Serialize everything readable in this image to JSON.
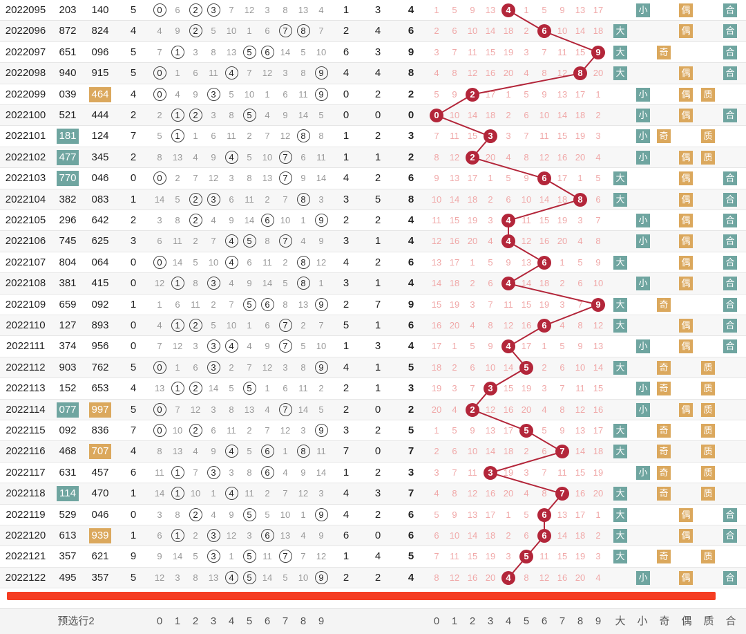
{
  "footer": {
    "label": "预选行2",
    "digits": [
      "0",
      "1",
      "2",
      "3",
      "4",
      "5",
      "6",
      "7",
      "8",
      "9"
    ],
    "digits2": [
      "0",
      "1",
      "2",
      "3",
      "4",
      "5",
      "6",
      "7",
      "8",
      "9"
    ],
    "tags": [
      "大",
      "小",
      "奇",
      "偶",
      "质",
      "合"
    ]
  },
  "rows": [
    {
      "issue": "2022095",
      "a": "203",
      "b": "140",
      "c": "5",
      "d": "1",
      "e": "3",
      "f": "4",
      "ball": 4,
      "tags": [
        "小",
        "偶",
        "合"
      ]
    },
    {
      "issue": "2022096",
      "a": "872",
      "b": "824",
      "c": "4",
      "d": "2",
      "e": "4",
      "f": "6",
      "ball": 6,
      "tags": [
        "大",
        "偶",
        "合"
      ]
    },
    {
      "issue": "2022097",
      "a": "651",
      "b": "096",
      "c": "5",
      "d": "6",
      "e": "3",
      "f": "9",
      "ball": 9,
      "tags": [
        "大",
        "奇",
        "合"
      ]
    },
    {
      "issue": "2022098",
      "a": "940",
      "b": "915",
      "c": "5",
      "d": "4",
      "e": "4",
      "f": "8",
      "ball": 8,
      "tags": [
        "大",
        "偶",
        "合"
      ]
    },
    {
      "issue": "2022099",
      "a": "039",
      "b": "464",
      "c": "4",
      "d": "0",
      "e": "2",
      "f": "2",
      "ball": 2,
      "tags": [
        "小",
        "偶",
        "质"
      ]
    },
    {
      "issue": "2022100",
      "a": "521",
      "b": "444",
      "c": "2",
      "d": "0",
      "e": "0",
      "f": "0",
      "ball": 0,
      "tags": [
        "小",
        "偶",
        "合"
      ]
    },
    {
      "issue": "2022101",
      "a": "181",
      "b": "124",
      "c": "7",
      "d": "1",
      "e": "2",
      "f": "3",
      "ball": 3,
      "tags": [
        "小",
        "奇",
        "质"
      ]
    },
    {
      "issue": "2022102",
      "a": "477",
      "b": "345",
      "c": "2",
      "d": "1",
      "e": "1",
      "f": "2",
      "ball": 2,
      "tags": [
        "小",
        "偶",
        "质"
      ]
    },
    {
      "issue": "2022103",
      "a": "770",
      "b": "046",
      "c": "0",
      "d": "4",
      "e": "2",
      "f": "6",
      "ball": 6,
      "tags": [
        "大",
        "偶",
        "合"
      ]
    },
    {
      "issue": "2022104",
      "a": "382",
      "b": "083",
      "c": "1",
      "d": "3",
      "e": "5",
      "f": "8",
      "ball": 8,
      "tags": [
        "大",
        "偶",
        "合"
      ]
    },
    {
      "issue": "2022105",
      "a": "296",
      "b": "642",
      "c": "2",
      "d": "2",
      "e": "2",
      "f": "4",
      "ball": 4,
      "tags": [
        "小",
        "偶",
        "合"
      ]
    },
    {
      "issue": "2022106",
      "a": "745",
      "b": "625",
      "c": "3",
      "d": "3",
      "e": "1",
      "f": "4",
      "ball": 4,
      "tags": [
        "小",
        "偶",
        "合"
      ]
    },
    {
      "issue": "2022107",
      "a": "804",
      "b": "064",
      "c": "0",
      "d": "4",
      "e": "2",
      "f": "6",
      "ball": 6,
      "tags": [
        "大",
        "偶",
        "合"
      ]
    },
    {
      "issue": "2022108",
      "a": "381",
      "b": "415",
      "c": "0",
      "d": "3",
      "e": "1",
      "f": "4",
      "ball": 4,
      "tags": [
        "小",
        "偶",
        "合"
      ]
    },
    {
      "issue": "2022109",
      "a": "659",
      "b": "092",
      "c": "1",
      "d": "2",
      "e": "7",
      "f": "9",
      "ball": 9,
      "tags": [
        "大",
        "奇",
        "合"
      ]
    },
    {
      "issue": "2022110",
      "a": "127",
      "b": "893",
      "c": "0",
      "d": "5",
      "e": "1",
      "f": "6",
      "ball": 6,
      "tags": [
        "大",
        "偶",
        "合"
      ]
    },
    {
      "issue": "2022111",
      "a": "374",
      "b": "956",
      "c": "0",
      "d": "1",
      "e": "3",
      "f": "4",
      "ball": 4,
      "tags": [
        "小",
        "偶",
        "合"
      ]
    },
    {
      "issue": "2022112",
      "a": "903",
      "b": "762",
      "c": "5",
      "d": "4",
      "e": "1",
      "f": "5",
      "ball": 5,
      "tags": [
        "大",
        "奇",
        "质"
      ]
    },
    {
      "issue": "2022113",
      "a": "152",
      "b": "653",
      "c": "4",
      "d": "2",
      "e": "1",
      "f": "3",
      "ball": 3,
      "tags": [
        "小",
        "奇",
        "质"
      ]
    },
    {
      "issue": "2022114",
      "a": "077",
      "b": "997",
      "c": "5",
      "d": "2",
      "e": "0",
      "f": "2",
      "ball": 2,
      "tags": [
        "小",
        "偶",
        "质"
      ]
    },
    {
      "issue": "2022115",
      "a": "092",
      "b": "836",
      "c": "7",
      "d": "3",
      "e": "2",
      "f": "5",
      "ball": 5,
      "tags": [
        "大",
        "奇",
        "质"
      ]
    },
    {
      "issue": "2022116",
      "a": "468",
      "b": "707",
      "c": "4",
      "d": "7",
      "e": "0",
      "f": "7",
      "ball": 7,
      "tags": [
        "大",
        "奇",
        "质"
      ]
    },
    {
      "issue": "2022117",
      "a": "631",
      "b": "457",
      "c": "6",
      "d": "1",
      "e": "2",
      "f": "3",
      "ball": 3,
      "tags": [
        "小",
        "奇",
        "质"
      ]
    },
    {
      "issue": "2022118",
      "a": "114",
      "b": "470",
      "c": "1",
      "d": "4",
      "e": "3",
      "f": "7",
      "ball": 7,
      "tags": [
        "大",
        "奇",
        "质"
      ]
    },
    {
      "issue": "2022119",
      "a": "529",
      "b": "046",
      "c": "0",
      "d": "4",
      "e": "2",
      "f": "6",
      "ball": 6,
      "tags": [
        "大",
        "偶",
        "合"
      ]
    },
    {
      "issue": "2022120",
      "a": "613",
      "b": "939",
      "c": "1",
      "d": "6",
      "e": "0",
      "f": "6",
      "ball": 6,
      "tags": [
        "大",
        "偶",
        "合"
      ]
    },
    {
      "issue": "2022121",
      "a": "357",
      "b": "621",
      "c": "9",
      "d": "1",
      "e": "4",
      "f": "5",
      "ball": 5,
      "tags": [
        "大",
        "奇",
        "质"
      ]
    },
    {
      "issue": "2022122",
      "a": "495",
      "b": "357",
      "c": "5",
      "d": "2",
      "e": "2",
      "f": "4",
      "ball": 4,
      "tags": [
        "小",
        "偶",
        "合"
      ]
    }
  ],
  "highlight_teal": [
    "181",
    "477",
    "770",
    "077",
    "114"
  ],
  "highlight_gold": [
    "464",
    "997",
    "707",
    "939"
  ],
  "colors": {
    "ball": "#b3263a",
    "teal": "#6fa5a0",
    "gold": "#dba85d",
    "redbar": "#f53d22"
  }
}
